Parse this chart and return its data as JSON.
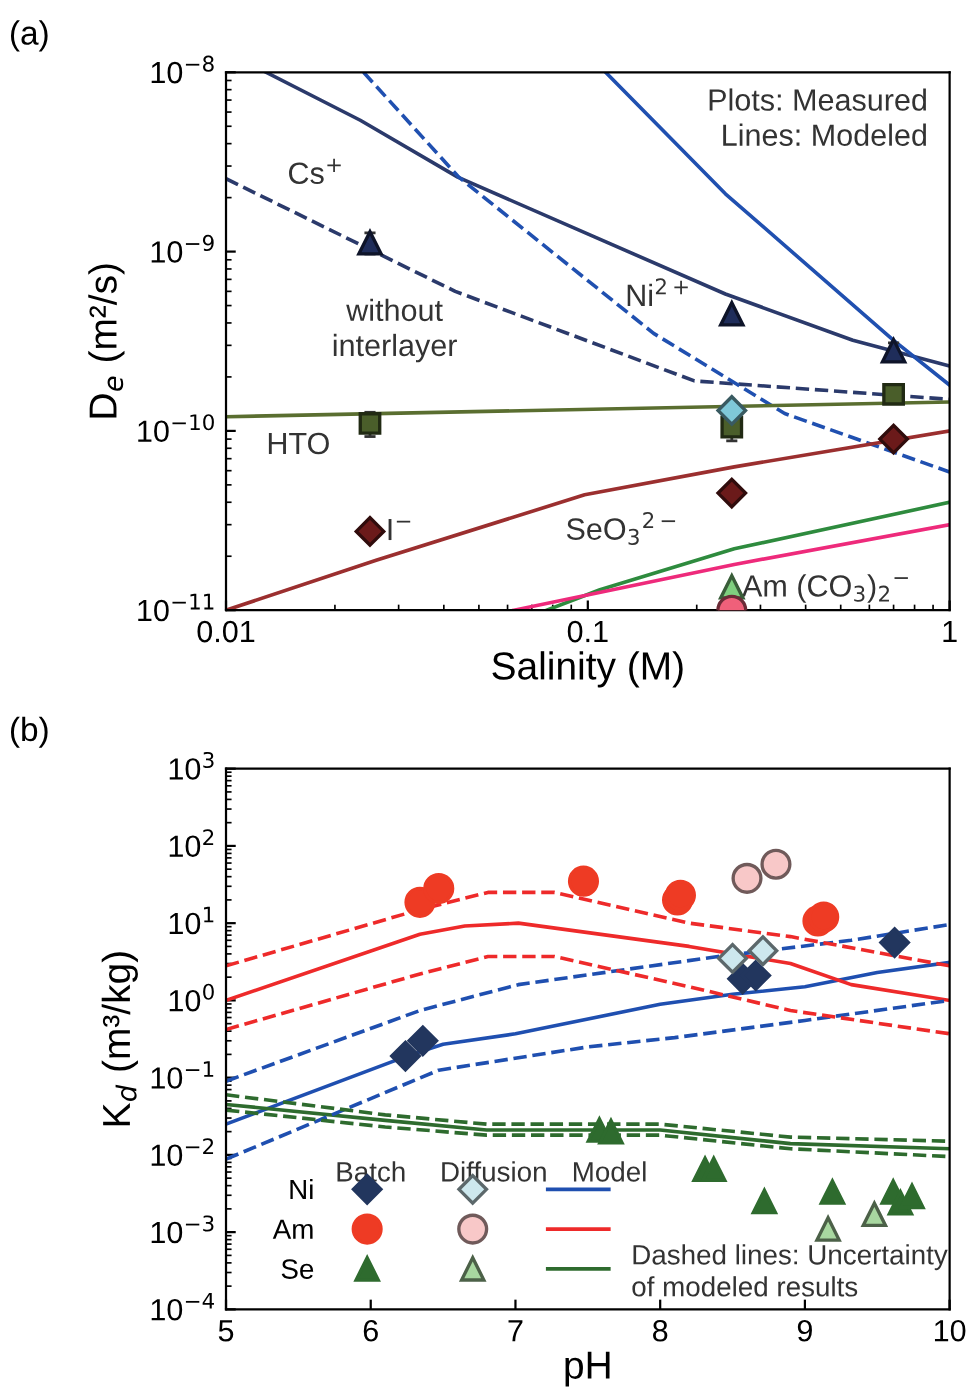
{
  "chart_data": [
    {
      "type": "line",
      "title": "(a)",
      "xlabel": "Salinity (M)",
      "ylabel": "D$_{e}$ (m²/s)",
      "log": "xy",
      "xlim": [
        0.01,
        1
      ],
      "xticks": [
        0.01,
        0.1,
        1
      ],
      "ylim": [
        1e-11,
        1e-08
      ],
      "yticks": [
        {
          "value": 1e-11,
          "label": "10$^{−11}$"
        },
        {
          "value": 1e-10,
          "label": "10$^{−10}$"
        },
        {
          "value": 1e-09,
          "label": "10$^{−9}$"
        },
        {
          "value": 1e-08,
          "label": "10$^{−8}$"
        }
      ],
      "series": [
        {
          "type": "line",
          "color": "#2b3a6b",
          "line_style": "solid",
          "x": [
            0.0129,
            0.0235,
            0.0437,
            0.24,
            0.54,
            1
          ],
          "values": [
            1e-08,
            5.4e-09,
            2.6e-09,
            5.8e-10,
            3.2e-10,
            2.3e-10
          ]
        },
        {
          "type": "line",
          "color": "#2b3a6b",
          "line_style": "dashed",
          "x": [
            0.01,
            0.043,
            0.197,
            1
          ],
          "values": [
            2.55e-09,
            6e-10,
            1.9e-10,
            1.5e-10
          ]
        },
        {
          "type": "line",
          "color": "#2050b0",
          "line_style": "solid",
          "x": [
            0.112,
            0.24,
            0.7,
            1
          ],
          "values": [
            1e-08,
            2.1e-09,
            3.2e-10,
            1.8e-10
          ]
        },
        {
          "type": "line",
          "color": "#2050b0",
          "line_style": "dashed",
          "x": [
            0.024,
            0.044,
            0.152,
            0.35,
            1
          ],
          "values": [
            1e-08,
            2.6e-09,
            3.5e-10,
            1.25e-10,
            5.9e-11
          ]
        },
        {
          "type": "line",
          "color": "#5a6e30",
          "line_style": "solid",
          "x": [
            0.01,
            1
          ],
          "values": [
            1.2e-10,
            1.45e-10
          ]
        },
        {
          "type": "line",
          "color": "#9b2f2f",
          "line_style": "solid",
          "x": [
            0.01,
            0.026,
            0.098,
            0.254,
            1
          ],
          "values": [
            1e-11,
            1.9e-11,
            4.4e-11,
            6.3e-11,
            1e-10
          ]
        },
        {
          "type": "line",
          "color": "#2e8b3e",
          "line_style": "solid",
          "x": [
            0.077,
            0.108,
            0.254,
            1
          ],
          "values": [
            1e-11,
            1.3e-11,
            2.2e-11,
            4e-11
          ]
        },
        {
          "type": "line",
          "color": "#ee2a7b",
          "line_style": "solid",
          "x": [
            0.0625,
            0.254,
            1
          ],
          "values": [
            1e-11,
            1.8e-11,
            3e-11
          ]
        },
        {
          "type": "scatter",
          "color": "#1f2d5a",
          "marker": "triangle",
          "x": [
            0.025,
            0.25,
            0.7
          ],
          "values": [
            1.12e-09,
            4.5e-10,
            2.8e-10
          ],
          "errors": [
            1.5e-10,
            null,
            3e-11
          ]
        },
        {
          "type": "scatter",
          "color": "#4a5e2a",
          "marker": "square",
          "x": [
            0.025,
            0.25,
            0.7
          ],
          "values": [
            1.1e-10,
            1.05e-10,
            1.6e-10
          ],
          "errors": [
            1.7e-11,
            1.7e-11,
            1e-11
          ]
        },
        {
          "type": "scatter",
          "color": "#7fc8d8",
          "marker": "diamond",
          "x": [
            0.25
          ],
          "values": [
            1.3e-10
          ]
        },
        {
          "type": "scatter",
          "color": "#6b1a1a",
          "marker": "diamond",
          "x": [
            0.025,
            0.25,
            0.7
          ],
          "values": [
            2.75e-11,
            4.5e-11,
            9e-11
          ]
        },
        {
          "type": "scatter",
          "color": "#7fcf7f",
          "marker": "triangle",
          "x": [
            0.25
          ],
          "values": [
            1.35e-11
          ]
        },
        {
          "type": "scatter",
          "color": "#f0607a",
          "marker": "circle",
          "x": [
            0.25
          ],
          "values": [
            1e-11
          ]
        }
      ],
      "annotations": [
        "Plots: Measured\nLines: Modeled",
        "Cs$^{+}$",
        "without\ninterlayer",
        "Ni$^{2+}$",
        "HTO",
        "I$^{−}$",
        "SeO$_{3}$$^{2−}$",
        "Am (CO$_{3}$)$_{2}$$^{−}$"
      ]
    },
    {
      "type": "line",
      "title": "(b)",
      "xlabel": "pH",
      "ylabel": "K$_{d}$ (m³/kg)",
      "log": "y",
      "legend": "bottom left",
      "xlim": [
        5,
        10
      ],
      "xticks": [
        5,
        6,
        7,
        8,
        9,
        10
      ],
      "ylim": [
        0.0001,
        1000.0
      ],
      "yticks": [
        {
          "value": 0.0001,
          "label": "10$^{−4}$"
        },
        {
          "value": 0.001,
          "label": "10$^{−3}$"
        },
        {
          "value": 0.01,
          "label": "10$^{−2}$"
        },
        {
          "value": 0.1,
          "label": "10$^{−1}$"
        },
        {
          "value": 1,
          "label": "10$^{0}$"
        },
        {
          "value": 10,
          "label": "10$^{1}$"
        },
        {
          "value": 100,
          "label": "10$^{2}$"
        },
        {
          "value": 1000,
          "label": "10$^{3}$"
        }
      ],
      "series": [
        {
          "type": "scatter",
          "name": "Ni",
          "color": "#22365e",
          "marker": "diamond",
          "x": [
            6.24,
            6.36,
            8.57,
            8.66,
            9.62
          ],
          "values": [
            0.19,
            0.3,
            1.9,
            2.1,
            5.6
          ]
        },
        {
          "type": "scatter",
          "name": "Am",
          "color": "#ee3b24",
          "marker": "circle",
          "x": [
            6.34,
            6.47,
            7.47,
            8.12,
            8.14,
            9.09,
            9.13
          ],
          "values": [
            18.6,
            28,
            35,
            20,
            23,
            10.7,
            12
          ]
        },
        {
          "type": "scatter",
          "name": "Se",
          "color": "#2e6b2e",
          "marker": "triangle",
          "x": [
            7.58,
            7.66,
            8.31,
            8.37,
            8.72,
            9.19,
            9.61,
            9.66,
            9.74
          ],
          "values": [
            0.021,
            0.02,
            0.0065,
            0.0065,
            0.0025,
            0.0033,
            0.0033,
            0.0024,
            0.0029
          ]
        },
        {
          "type": "scatter",
          "color": "#cde8ee",
          "marker": "diamond",
          "x": [
            8.5,
            8.71
          ],
          "values": [
            3.5,
            4.4
          ]
        },
        {
          "type": "scatter",
          "color": "#f8c8c8",
          "marker": "circle",
          "x": [
            8.6,
            8.8
          ],
          "values": [
            38,
            58
          ]
        },
        {
          "type": "scatter",
          "color": "#a8d8a0",
          "marker": "triangle",
          "x": [
            9.16,
            9.48
          ],
          "values": [
            0.0011,
            0.0017
          ]
        },
        {
          "type": "line",
          "color": "#1f4fb0",
          "line_style": "solid",
          "x": [
            5,
            6.25,
            6.5,
            7,
            8,
            8.5,
            9,
            9.5,
            10
          ],
          "values": [
            0.025,
            0.19,
            0.27,
            0.37,
            0.89,
            1.2,
            1.5,
            2.3,
            3.1
          ]
        },
        {
          "type": "line",
          "color": "#ee2a2a",
          "line_style": "solid",
          "x": [
            5,
            6.34,
            6.65,
            7.02,
            8.2,
            8.9,
            9.32,
            10
          ],
          "values": [
            1,
            7.2,
            9.2,
            10,
            5,
            3,
            1.6,
            1
          ]
        },
        {
          "type": "line",
          "color": "#2e6b2e",
          "line_style": "solid",
          "x": [
            5,
            6.1,
            6.8,
            8,
            8.9,
            10
          ],
          "values": [
            0.045,
            0.028,
            0.021,
            0.021,
            0.014,
            0.012
          ]
        },
        {
          "type": "line",
          "color": "#1f4fb0",
          "line_style": "dashed",
          "x": [
            5,
            6.34,
            7.02,
            8.4,
            9.32,
            10
          ],
          "values": [
            0.09,
            0.74,
            1.6,
            3.7,
            6,
            9.6
          ]
        },
        {
          "type": "line",
          "color": "#1f4fb0",
          "line_style": "dashed",
          "x": [
            5,
            5.64,
            6.47,
            7.5,
            8.1,
            9,
            10
          ],
          "values": [
            0.0088,
            0.028,
            0.125,
            0.25,
            0.33,
            0.55,
            1
          ]
        },
        {
          "type": "line",
          "color": "#ee2a2a",
          "line_style": "dashed",
          "x": [
            5,
            6.34,
            6.81,
            7.27,
            8.2,
            8.9,
            10
          ],
          "values": [
            2.8,
            15,
            25,
            25,
            10,
            6.7,
            2.8
          ]
        },
        {
          "type": "line",
          "color": "#ee2a2a",
          "line_style": "dashed",
          "x": [
            5,
            6.34,
            6.81,
            7.27,
            8.2,
            8.9,
            10
          ],
          "values": [
            0.42,
            2.2,
            3.7,
            3.7,
            1.5,
            0.74,
            0.37
          ]
        },
        {
          "type": "line",
          "color": "#2e6b2e",
          "line_style": "dashed",
          "x": [
            5,
            6.1,
            6.8,
            8,
            8.9,
            10
          ],
          "values": [
            0.06,
            0.033,
            0.025,
            0.025,
            0.017,
            0.015
          ]
        },
        {
          "type": "line",
          "color": "#2e6b2e",
          "line_style": "dashed",
          "x": [
            5,
            6.1,
            6.8,
            8,
            8.9,
            10
          ],
          "values": [
            0.038,
            0.023,
            0.018,
            0.018,
            0.012,
            0.0095
          ]
        }
      ],
      "annotations": [
        "Batch",
        "Diffusion",
        "Model",
        "Dashed lines: Uncertainty\nof modeled results"
      ]
    }
  ]
}
